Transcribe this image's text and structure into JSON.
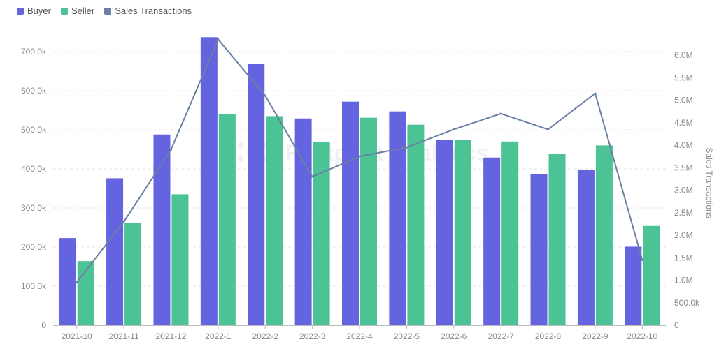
{
  "chart_data": {
    "type": "bar",
    "categories": [
      "2021-10",
      "2021-11",
      "2021-12",
      "2022-1",
      "2022-2",
      "2022-3",
      "2022-4",
      "2022-5",
      "2022-6",
      "2022-7",
      "2022-8",
      "2022-9",
      "2022-10"
    ],
    "series": [
      {
        "name": "Buyer",
        "kind": "bar",
        "axis": "left",
        "color": "#6464e0",
        "values": [
          223000,
          376000,
          488000,
          737000,
          668000,
          529000,
          572000,
          547000,
          474000,
          429000,
          386000,
          397000,
          201000
        ]
      },
      {
        "name": "Seller",
        "kind": "bar",
        "axis": "left",
        "color": "#4cc394",
        "values": [
          164000,
          261000,
          335000,
          540000,
          535000,
          468000,
          531000,
          513000,
          474000,
          470000,
          439000,
          460000,
          254000
        ]
      },
      {
        "name": "Sales Transactions",
        "kind": "line",
        "axis": "right",
        "color": "#6b7fa3",
        "values": [
          950000,
          2300000,
          3900000,
          6350000,
          5100000,
          3300000,
          3750000,
          3950000,
          4350000,
          4700000,
          4350000,
          5150000,
          1450000
        ]
      }
    ],
    "left_axis": {
      "ylim": [
        0,
        700000
      ],
      "ticks": [
        0,
        100000,
        200000,
        300000,
        400000,
        500000,
        600000,
        700000
      ],
      "tick_labels": [
        "0",
        "100.0k",
        "200.0k",
        "300.0k",
        "400.0k",
        "500.0k",
        "600.0k",
        "700.0k"
      ]
    },
    "right_axis": {
      "label": "Sales Transactions",
      "ylim": [
        0,
        6000000
      ],
      "ticks": [
        0,
        500000,
        1000000,
        1500000,
        2000000,
        2500000,
        3000000,
        3500000,
        4000000,
        4500000,
        5000000,
        5500000,
        6000000
      ],
      "tick_labels": [
        "0",
        "500.0k",
        "1.0M",
        "1.5M",
        "2.0M",
        "2.5M",
        "3.0M",
        "3.5M",
        "4.0M",
        "4.5M",
        "5.0M",
        "5.5M",
        "6.0M"
      ]
    },
    "grid": true,
    "legend_position": "top-left",
    "watermark": "Footprint Analytics"
  }
}
